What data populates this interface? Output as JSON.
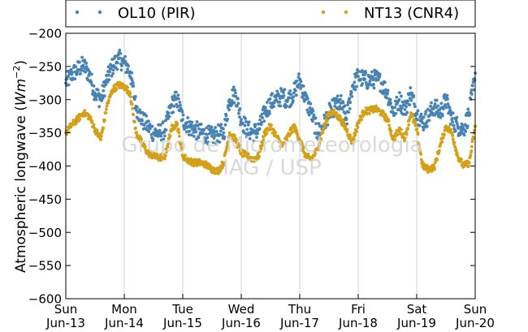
{
  "chart_data": {
    "type": "scatter",
    "ylabel": "Atmospheric longwave (Wm^-2)",
    "ylabel_parts": {
      "main": "Atmospheric longwave (",
      "italic": "Wm",
      "exp": "−2",
      "close": ")"
    },
    "ylim": [
      -600,
      -200
    ],
    "yticks": [
      -200,
      -250,
      -300,
      -350,
      -400,
      -450,
      -500,
      -550,
      -600
    ],
    "ytick_labels": [
      "−200",
      "−250",
      "−300",
      "−350",
      "−400",
      "−450",
      "−500",
      "−550",
      "−600"
    ],
    "xlim": [
      0,
      7
    ],
    "xticks": [
      0,
      1,
      2,
      3,
      4,
      5,
      6,
      7
    ],
    "xtick_labels_top": [
      "Sun",
      "Mon",
      "Tue",
      "Wed",
      "Thu",
      "Fri",
      "Sat",
      "Sun"
    ],
    "xtick_labels_bottom": [
      "Jun-13",
      "Jun-14",
      "Jun-15",
      "Jun-16",
      "Jun-17",
      "Jun-18",
      "Jun-19",
      "Jun-20"
    ],
    "grid": "vertical",
    "legend_position": "top",
    "watermark": [
      "Grupo de Micrometeorologia",
      "IAG / USP"
    ],
    "series": [
      {
        "name": "OL10 (PIR)",
        "color": "#4682b4",
        "x": [
          0.0,
          0.1,
          0.2,
          0.3,
          0.4,
          0.5,
          0.6,
          0.7,
          0.8,
          0.9,
          1.0,
          1.1,
          1.2,
          1.3,
          1.4,
          1.5,
          1.6,
          1.7,
          1.8,
          1.9,
          2.0,
          2.1,
          2.2,
          2.3,
          2.4,
          2.5,
          2.6,
          2.7,
          2.8,
          2.9,
          3.0,
          3.1,
          3.2,
          3.3,
          3.4,
          3.5,
          3.6,
          3.7,
          3.8,
          3.9,
          4.0,
          4.1,
          4.2,
          4.3,
          4.4,
          4.5,
          4.6,
          4.7,
          4.8,
          4.9,
          5.0,
          5.1,
          5.2,
          5.3,
          5.4,
          5.5,
          5.6,
          5.7,
          5.8,
          5.9,
          6.0,
          6.1,
          6.2,
          6.3,
          6.4,
          6.5,
          6.6,
          6.7,
          6.8,
          6.9,
          7.0
        ],
        "y": [
          -275,
          -262,
          -255,
          -248,
          -262,
          -290,
          -300,
          -270,
          -250,
          -238,
          -245,
          -258,
          -310,
          -330,
          -340,
          -350,
          -350,
          -345,
          -310,
          -298,
          -330,
          -340,
          -345,
          -350,
          -352,
          -355,
          -352,
          -350,
          -300,
          -290,
          -330,
          -345,
          -350,
          -345,
          -320,
          -305,
          -300,
          -295,
          -300,
          -290,
          -270,
          -300,
          -320,
          -350,
          -340,
          -320,
          -310,
          -305,
          -330,
          -280,
          -265,
          -270,
          -272,
          -268,
          -275,
          -290,
          -320,
          -300,
          -315,
          -290,
          -320,
          -335,
          -325,
          -310,
          -320,
          -300,
          -330,
          -340,
          -345,
          -320,
          -260
        ]
      },
      {
        "name": "NT13 (CNR4)",
        "color": "#d4a017",
        "x": [
          0.0,
          0.1,
          0.2,
          0.3,
          0.4,
          0.5,
          0.6,
          0.7,
          0.8,
          0.9,
          1.0,
          1.1,
          1.2,
          1.3,
          1.4,
          1.5,
          1.6,
          1.7,
          1.8,
          1.9,
          2.0,
          2.1,
          2.2,
          2.3,
          2.4,
          2.5,
          2.6,
          2.7,
          2.8,
          2.9,
          3.0,
          3.1,
          3.2,
          3.3,
          3.4,
          3.5,
          3.6,
          3.7,
          3.8,
          3.9,
          4.0,
          4.1,
          4.2,
          4.3,
          4.4,
          4.5,
          4.6,
          4.7,
          4.8,
          4.9,
          5.0,
          5.1,
          5.2,
          5.3,
          5.4,
          5.5,
          5.6,
          5.7,
          5.8,
          5.9,
          6.0,
          6.1,
          6.2,
          6.3,
          6.4,
          6.5,
          6.6,
          6.7,
          6.8,
          6.9,
          7.0
        ],
        "y": [
          -350,
          -338,
          -330,
          -320,
          -325,
          -345,
          -360,
          -310,
          -285,
          -278,
          -280,
          -290,
          -350,
          -365,
          -380,
          -385,
          -388,
          -385,
          -345,
          -335,
          -385,
          -392,
          -395,
          -395,
          -398,
          -405,
          -408,
          -395,
          -350,
          -360,
          -380,
          -385,
          -390,
          -385,
          -350,
          -340,
          -355,
          -370,
          -355,
          -340,
          -360,
          -385,
          -390,
          -375,
          -345,
          -320,
          -320,
          -330,
          -345,
          -365,
          -335,
          -318,
          -316,
          -314,
          -320,
          -330,
          -360,
          -345,
          -358,
          -320,
          -345,
          -400,
          -405,
          -402,
          -370,
          -340,
          -350,
          -385,
          -400,
          -395,
          -340
        ]
      }
    ]
  }
}
